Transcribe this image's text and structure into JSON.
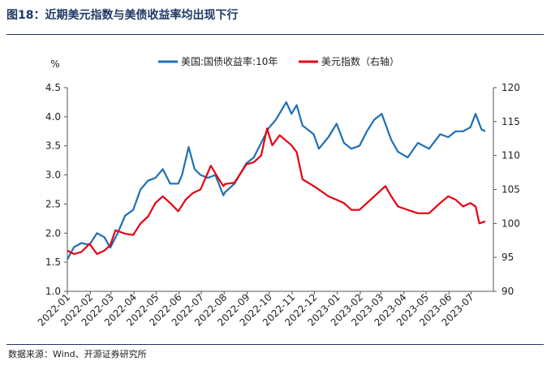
{
  "figure": {
    "title": "图18：近期美元指数与美债收益率均出现下行",
    "source": "数据来源：Wind、开源证券研究所"
  },
  "chart_data": {
    "type": "line",
    "y_unit": "%",
    "y_left": {
      "min": 1.0,
      "max": 4.5,
      "ticks": [
        "1.0",
        "1.5",
        "2.0",
        "2.5",
        "3.0",
        "3.5",
        "4.0",
        "4.5"
      ]
    },
    "y_right": {
      "min": 90,
      "max": 120,
      "ticks": [
        "90",
        "95",
        "100",
        "105",
        "110",
        "115",
        "120"
      ]
    },
    "x_ticks": [
      "2022-01",
      "2022-02",
      "2022-03",
      "2022-04",
      "2022-05",
      "2022-06",
      "2022-07",
      "2022-08",
      "2022-09",
      "2022-10",
      "2022-11",
      "2022-12",
      "2023-01",
      "2023-02",
      "2023-03",
      "2023-04",
      "2023-05",
      "2023-06",
      "2023-07"
    ],
    "legend_position": "top-center",
    "series": [
      {
        "name": "美国:国债收益率:10年",
        "axis": "left",
        "color": "#1f6fb5",
        "points": [
          [
            "2022-01-01",
            1.55
          ],
          [
            "2022-01-10",
            1.76
          ],
          [
            "2022-01-20",
            1.83
          ],
          [
            "2022-01-31",
            1.8
          ],
          [
            "2022-02-10",
            2.0
          ],
          [
            "2022-02-20",
            1.93
          ],
          [
            "2022-02-28",
            1.75
          ],
          [
            "2022-03-10",
            2.0
          ],
          [
            "2022-03-20",
            2.3
          ],
          [
            "2022-03-31",
            2.4
          ],
          [
            "2022-04-10",
            2.75
          ],
          [
            "2022-04-20",
            2.9
          ],
          [
            "2022-04-30",
            2.95
          ],
          [
            "2022-05-10",
            3.1
          ],
          [
            "2022-05-20",
            2.85
          ],
          [
            "2022-05-31",
            2.85
          ],
          [
            "2022-06-05",
            3.0
          ],
          [
            "2022-06-14",
            3.48
          ],
          [
            "2022-06-22",
            3.1
          ],
          [
            "2022-06-30",
            3.0
          ],
          [
            "2022-07-10",
            2.95
          ],
          [
            "2022-07-20",
            3.0
          ],
          [
            "2022-07-31",
            2.65
          ],
          [
            "2022-08-02",
            2.7
          ],
          [
            "2022-08-15",
            2.85
          ],
          [
            "2022-08-31",
            3.2
          ],
          [
            "2022-09-10",
            3.3
          ],
          [
            "2022-09-20",
            3.55
          ],
          [
            "2022-09-30",
            3.8
          ],
          [
            "2022-10-10",
            3.95
          ],
          [
            "2022-10-24",
            4.25
          ],
          [
            "2022-10-31",
            4.05
          ],
          [
            "2022-11-07",
            4.2
          ],
          [
            "2022-11-15",
            3.85
          ],
          [
            "2022-11-30",
            3.7
          ],
          [
            "2022-12-07",
            3.45
          ],
          [
            "2022-12-20",
            3.65
          ],
          [
            "2022-12-31",
            3.88
          ],
          [
            "2023-01-10",
            3.55
          ],
          [
            "2023-01-20",
            3.45
          ],
          [
            "2023-01-31",
            3.5
          ],
          [
            "2023-02-10",
            3.75
          ],
          [
            "2023-02-20",
            3.95
          ],
          [
            "2023-03-02",
            4.05
          ],
          [
            "2023-03-15",
            3.6
          ],
          [
            "2023-03-24",
            3.4
          ],
          [
            "2023-04-06",
            3.3
          ],
          [
            "2023-04-20",
            3.55
          ],
          [
            "2023-05-05",
            3.45
          ],
          [
            "2023-05-20",
            3.7
          ],
          [
            "2023-05-31",
            3.65
          ],
          [
            "2023-06-10",
            3.75
          ],
          [
            "2023-06-20",
            3.75
          ],
          [
            "2023-06-30",
            3.82
          ],
          [
            "2023-07-07",
            4.05
          ],
          [
            "2023-07-15",
            3.78
          ],
          [
            "2023-07-20",
            3.75
          ]
        ]
      },
      {
        "name": "美元指数（右轴）",
        "axis": "right",
        "color": "#e60012",
        "points": [
          [
            "2022-01-01",
            96.0
          ],
          [
            "2022-01-10",
            95.5
          ],
          [
            "2022-01-20",
            95.8
          ],
          [
            "2022-01-31",
            97.0
          ],
          [
            "2022-02-10",
            95.5
          ],
          [
            "2022-02-20",
            96.0
          ],
          [
            "2022-02-28",
            96.8
          ],
          [
            "2022-03-07",
            99.0
          ],
          [
            "2022-03-20",
            98.5
          ],
          [
            "2022-03-31",
            98.3
          ],
          [
            "2022-04-10",
            100.0
          ],
          [
            "2022-04-20",
            101.0
          ],
          [
            "2022-04-30",
            103.0
          ],
          [
            "2022-05-10",
            104.0
          ],
          [
            "2022-05-20",
            103.0
          ],
          [
            "2022-05-31",
            101.8
          ],
          [
            "2022-06-10",
            103.5
          ],
          [
            "2022-06-20",
            104.5
          ],
          [
            "2022-06-30",
            105.0
          ],
          [
            "2022-07-14",
            108.5
          ],
          [
            "2022-07-25",
            106.5
          ],
          [
            "2022-07-31",
            105.5
          ],
          [
            "2022-08-02",
            105.8
          ],
          [
            "2022-08-15",
            106.0
          ],
          [
            "2022-08-31",
            108.7
          ],
          [
            "2022-09-10",
            109.0
          ],
          [
            "2022-09-20",
            110.0
          ],
          [
            "2022-09-28",
            114.0
          ],
          [
            "2022-10-05",
            111.5
          ],
          [
            "2022-10-15",
            113.0
          ],
          [
            "2022-10-31",
            111.5
          ],
          [
            "2022-11-07",
            110.5
          ],
          [
            "2022-11-15",
            106.5
          ],
          [
            "2022-11-30",
            105.5
          ],
          [
            "2022-12-07",
            105.0
          ],
          [
            "2022-12-20",
            104.0
          ],
          [
            "2022-12-31",
            103.5
          ],
          [
            "2023-01-10",
            103.0
          ],
          [
            "2023-01-20",
            102.0
          ],
          [
            "2023-01-31",
            102.0
          ],
          [
            "2023-02-10",
            103.0
          ],
          [
            "2023-02-20",
            104.0
          ],
          [
            "2023-03-07",
            105.5
          ],
          [
            "2023-03-15",
            104.0
          ],
          [
            "2023-03-24",
            102.5
          ],
          [
            "2023-04-06",
            102.0
          ],
          [
            "2023-04-20",
            101.5
          ],
          [
            "2023-05-05",
            101.5
          ],
          [
            "2023-05-20",
            103.0
          ],
          [
            "2023-05-31",
            104.0
          ],
          [
            "2023-06-10",
            103.5
          ],
          [
            "2023-06-20",
            102.5
          ],
          [
            "2023-06-30",
            103.0
          ],
          [
            "2023-07-07",
            102.5
          ],
          [
            "2023-07-12",
            100.0
          ],
          [
            "2023-07-20",
            100.3
          ]
        ]
      }
    ]
  }
}
